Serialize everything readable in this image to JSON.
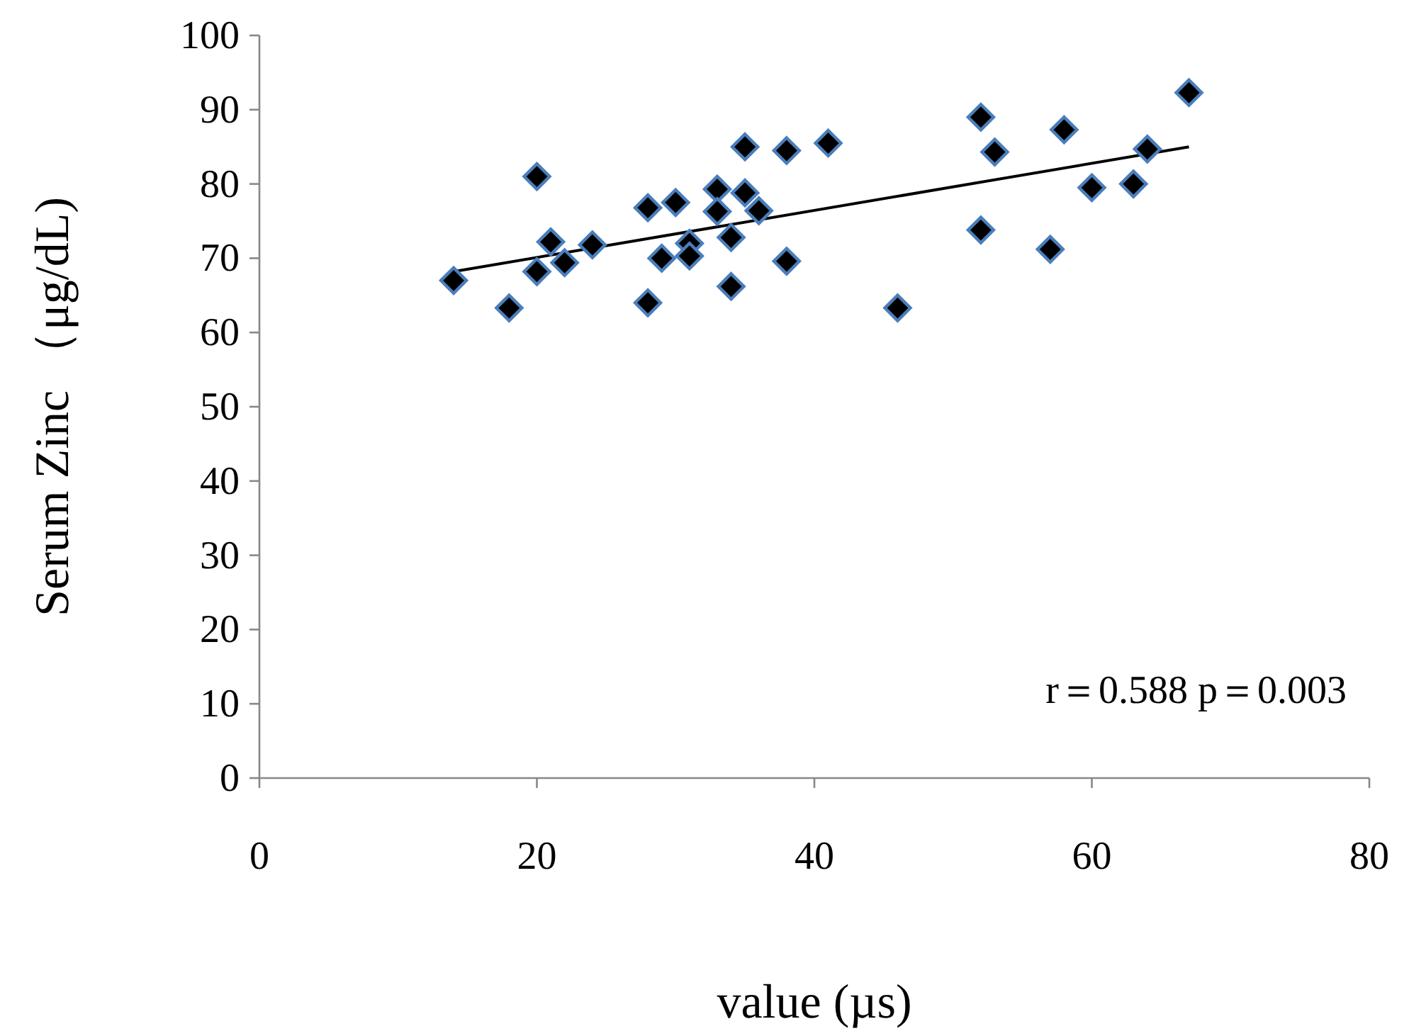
{
  "chart_data": {
    "type": "scatter",
    "xlabel": "value (µs)",
    "ylabel": "Serum Zinc （μg/dL)",
    "xlim": [
      0,
      80
    ],
    "xticks": [
      0,
      20,
      40,
      60,
      80
    ],
    "ylim": [
      0,
      100
    ],
    "yticks": [
      0,
      10,
      20,
      30,
      40,
      50,
      60,
      70,
      80,
      90,
      100
    ],
    "grid": false,
    "marker": "diamond",
    "annotations": [
      "r＝0.588 p＝0.003"
    ],
    "series": [
      {
        "color": "#000000",
        "x": [
          14,
          18,
          20,
          20,
          21,
          22,
          24,
          28,
          28,
          29,
          30,
          31,
          31,
          33,
          33,
          34,
          34,
          35,
          35,
          36,
          38,
          38,
          41,
          46,
          52,
          52,
          53,
          57,
          58,
          60,
          63,
          64,
          67
        ],
        "values": [
          67,
          63.3,
          81,
          68.2,
          72.2,
          69.4,
          71.8,
          76.8,
          64,
          70,
          77.5,
          72,
          70.3,
          79.3,
          76.3,
          72.8,
          66.2,
          85,
          78.8,
          76.4,
          84.5,
          69.6,
          85.5,
          63.3,
          89,
          73.8,
          84.3,
          71.2,
          87.3,
          79.5,
          80,
          84.7,
          92.3
        ]
      },
      {
        "type": "line",
        "color": "#000000",
        "marker": "none",
        "x": [
          14,
          67
        ],
        "values": [
          68.2,
          85
        ]
      }
    ]
  }
}
